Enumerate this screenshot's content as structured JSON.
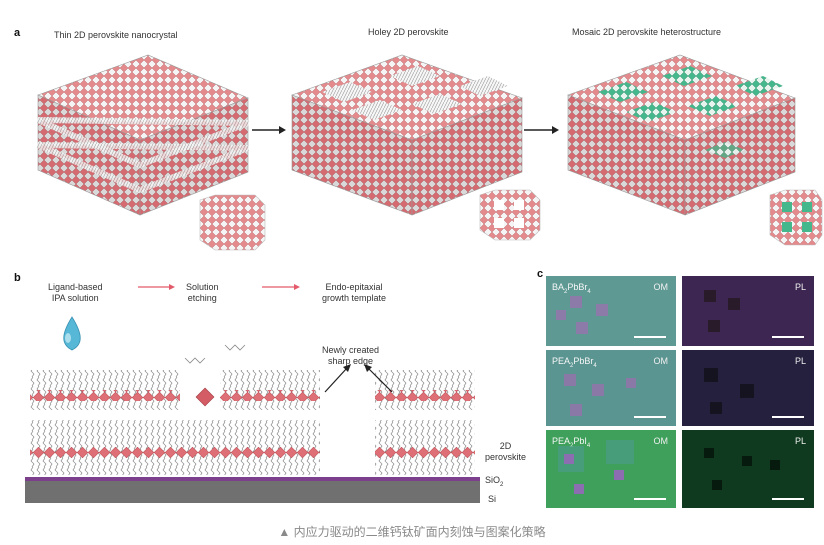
{
  "figure": {
    "panel_a": {
      "label": "a",
      "titles": [
        "Thin 2D perovskite nanocrystal",
        "Holey 2D perovskite",
        "Mosaic 2D perovskite heterostructure"
      ]
    },
    "panel_b": {
      "label": "b",
      "steps": [
        "Ligand-based\nIPA solution",
        "Solution\netching",
        "Endo-epitaxial\ngrowth template"
      ],
      "annotation": "Newly created\nsharp edge",
      "layers": [
        "2D\nperovskite",
        "SiO",
        "2",
        "Si"
      ]
    },
    "panel_c": {
      "label": "c",
      "rows": [
        {
          "material_prefix": "BA",
          "sub1": "2",
          "material_mid": "PbBr",
          "sub2": "4",
          "om": "OM",
          "pl": "PL"
        },
        {
          "material_prefix": "PEA",
          "sub1": "2",
          "material_mid": "PbBr",
          "sub2": "4",
          "om": "OM",
          "pl": "PL"
        },
        {
          "material_prefix": "PEA",
          "sub1": "2",
          "material_mid": "PbI",
          "sub2": "4",
          "om": "OM",
          "pl": "PL"
        }
      ]
    },
    "caption": "▲ 内应力驱动的二维钙钛矿面内刻蚀与图案化策略"
  },
  "colors": {
    "perovskite": "#e07a7e",
    "green_domain": "#3fb38a",
    "om_bg": "#5a9b94",
    "pl_bg1": "#3b2448",
    "pl_bg2": "#25203f",
    "pl_bg3": "#0e3a1e",
    "arrow_pink": "#e35b6b",
    "substrate_purple": "#7b3f8c",
    "substrate_si": "#707070"
  }
}
